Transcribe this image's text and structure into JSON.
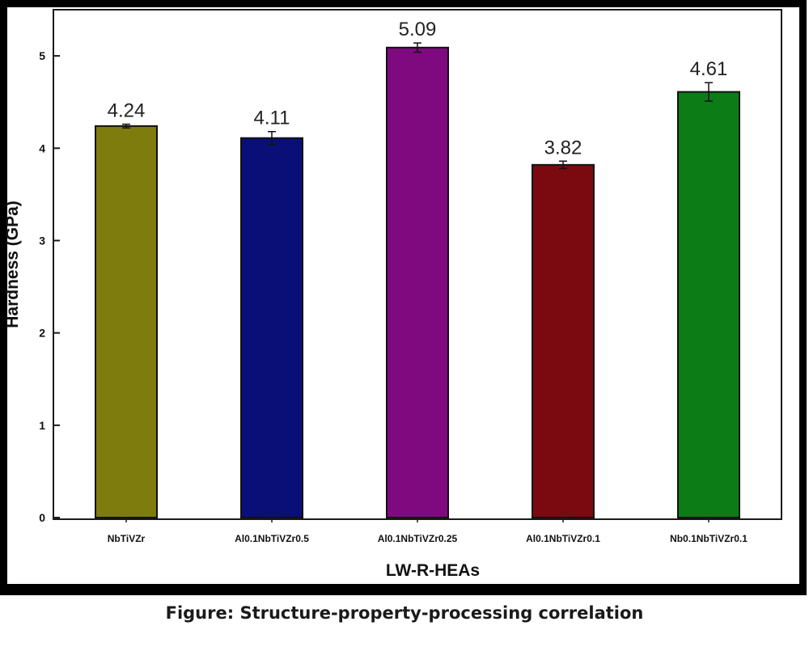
{
  "caption": "Figure: Structure-property-processing correlation",
  "chart_data": {
    "type": "bar",
    "categories": [
      "NbTiVZr",
      "Al0.1NbTiVZr0.5",
      "Al0.1NbTiVZr0.25",
      "Al0.1NbTiVZr0.1",
      "Nb0.1NbTiVZr0.1"
    ],
    "values": [
      4.24,
      4.11,
      5.09,
      3.82,
      4.61
    ],
    "errors": [
      0.02,
      0.07,
      0.05,
      0.04,
      0.1
    ],
    "data_labels": [
      "4.24",
      "4.11",
      "5.09",
      "3.82",
      "4.61"
    ],
    "colors": [
      "#7d7c0c",
      "#0a0f78",
      "#7f0a7f",
      "#7a0a0f",
      "#0c7d16"
    ],
    "title": "",
    "xlabel": "LW-R-HEAs",
    "ylabel": "Hardness (GPa)",
    "ylim": [
      0,
      5.5
    ],
    "yticks": [
      0,
      1,
      2,
      3,
      4,
      5
    ],
    "grid": false
  }
}
